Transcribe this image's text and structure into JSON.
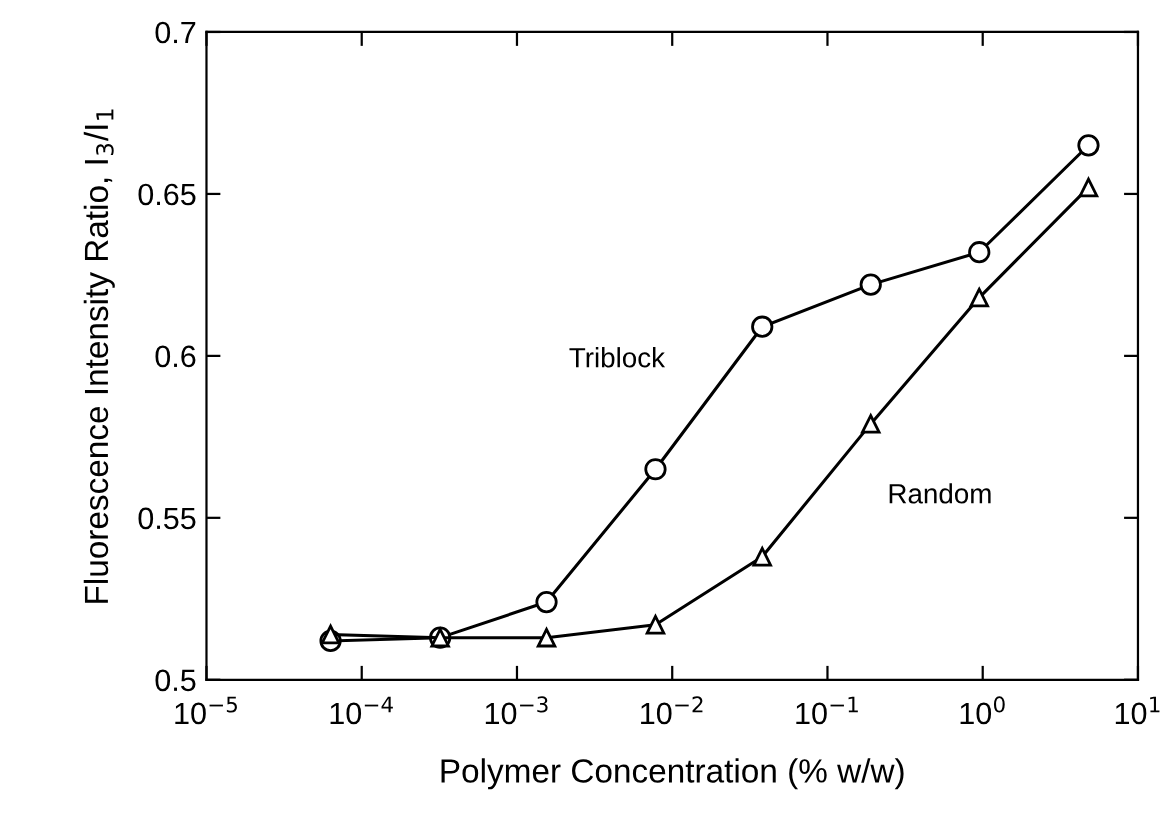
{
  "chart_data": {
    "type": "line",
    "xlabel": "Polymer Concentration (% w/w)",
    "ylabel": "Fluorescence Intensity Ratio, I$_{3}$/I$_{1}$",
    "log": "x",
    "xlim": [
      1e-05,
      10
    ],
    "ylim": [
      0.5,
      0.7
    ],
    "xticks": [
      {
        "value": 1e-05,
        "label": "10$^{−5}$"
      },
      {
        "value": 0.0001,
        "label": "10$^{−4}$"
      },
      {
        "value": 0.001,
        "label": "10$^{−3}$"
      },
      {
        "value": 0.01,
        "label": "10$^{−2}$"
      },
      {
        "value": 0.1,
        "label": "10$^{−1}$"
      },
      {
        "value": 1,
        "label": "10$^{0}$"
      },
      {
        "value": 10,
        "label": "10$^{1}$"
      }
    ],
    "yticks": [
      0.5,
      0.55,
      0.6,
      0.65,
      0.7
    ],
    "grid": false,
    "legend": false,
    "x": [
      6.3e-05,
      0.00032,
      0.00155,
      0.0078,
      0.038,
      0.19,
      0.95,
      4.8
    ],
    "series": [
      {
        "name": "Triblock",
        "color": "#000000",
        "marker": "circle",
        "values": [
          0.512,
          0.513,
          0.524,
          0.565,
          0.609,
          0.622,
          0.632,
          0.665
        ]
      },
      {
        "name": "Random",
        "color": "#000000",
        "marker": "triangle",
        "values": [
          0.514,
          0.513,
          0.513,
          0.517,
          0.538,
          0.579,
          0.618,
          0.652
        ]
      }
    ]
  }
}
